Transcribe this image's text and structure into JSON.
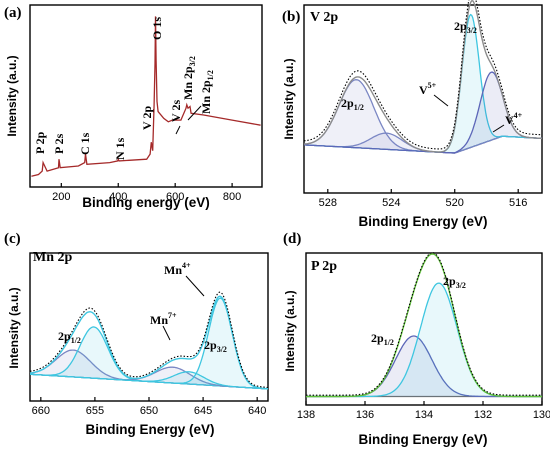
{
  "chart_data": [
    {
      "panel_label": "(a)",
      "type": "line",
      "xlabel": "Binding energy (eV)",
      "ylabel": "Intensity (a.u.)",
      "xlim": [
        90,
        905
      ],
      "x_ticks": [
        200,
        400,
        600,
        800
      ],
      "tick_labels": [
        "200",
        "400",
        "600",
        "800"
      ],
      "series": [
        {
          "color": "#a52a2a",
          "x": [
            95,
            120,
            133,
            136,
            150,
            190,
            192,
            196,
            260,
            282,
            285,
            290,
            370,
            398,
            400,
            403,
            500,
            512,
            516,
            521,
            526,
            529,
            531,
            533,
            536,
            540,
            560,
            576,
            590,
            620,
            638,
            641,
            645,
            652,
            656,
            700,
            800,
            900
          ],
          "y": [
            0.04,
            0.05,
            0.07,
            0.12,
            0.07,
            0.09,
            0.14,
            0.09,
            0.1,
            0.12,
            0.17,
            0.11,
            0.12,
            0.13,
            0.14,
            0.13,
            0.14,
            0.17,
            0.24,
            0.19,
            0.46,
            0.7,
            0.98,
            0.72,
            0.48,
            0.42,
            0.38,
            0.36,
            0.37,
            0.37,
            0.44,
            0.46,
            0.44,
            0.45,
            0.41,
            0.4,
            0.37,
            0.34
          ]
        }
      ],
      "annotations": [
        "P 2p",
        "P 2s",
        "C 1s",
        "N 1s",
        "V 2p",
        "O 1s",
        "V 2s",
        "Mn 2p3/2",
        "Mn 2p1/2"
      ]
    },
    {
      "panel_label": "(b)",
      "element": "V 2p",
      "type": "line",
      "xlabel": "Binding Energy (eV)",
      "ylabel": "Intensity (a.u.)",
      "xlim": [
        529.5,
        514.5
      ],
      "x_ticks": [
        528,
        524,
        520,
        516
      ],
      "tick_labels": [
        "528",
        "524",
        "520",
        "516"
      ],
      "peaks": [
        {
          "center": 526.2,
          "height": 0.42,
          "width": 1.1,
          "color": "#7b87c4"
        },
        {
          "center": 524.3,
          "height": 0.1,
          "width": 1.0,
          "color": "#7b87c4"
        },
        {
          "center": 519.0,
          "height": 0.82,
          "width": 0.55,
          "color": "#3ec6e0"
        },
        {
          "center": 517.7,
          "height": 0.42,
          "width": 0.7,
          "color": "#5c66b8"
        }
      ],
      "annotations": [
        "2p1/2",
        "V5+",
        "2p3/2",
        "V4+"
      ]
    },
    {
      "panel_label": "(c)",
      "element": "Mn 2p",
      "type": "line",
      "xlabel": "Binding Energy (eV)",
      "ylabel": "Intensity (a.u.)",
      "xlim": [
        661,
        639
      ],
      "x_ticks": [
        660,
        655,
        650,
        645,
        640
      ],
      "tick_labels": [
        "660",
        "655",
        "650",
        "645",
        "640"
      ],
      "peaks": [
        {
          "center": 657.0,
          "height": 0.22,
          "width": 1.6,
          "color": "#7b87c4"
        },
        {
          "center": 655.1,
          "height": 0.42,
          "width": 1.3,
          "color": "#3ec6e0"
        },
        {
          "center": 647.8,
          "height": 0.13,
          "width": 1.6,
          "color": "#7b87c4"
        },
        {
          "center": 646.3,
          "height": 0.1,
          "width": 1.4,
          "color": "#3ec6e0"
        },
        {
          "center": 643.4,
          "height": 0.72,
          "width": 1.1,
          "color": "#3ec6e0"
        }
      ],
      "annotations": [
        "Mn4+",
        "Mn7+",
        "2p1/2",
        "2p3/2"
      ]
    },
    {
      "panel_label": "(d)",
      "element": "P 2p",
      "type": "line",
      "xlabel": "Binding Energy (eV)",
      "ylabel": "Intensity (a.u.)",
      "xlim": [
        138,
        130
      ],
      "x_ticks": [
        138,
        136,
        134,
        132,
        130
      ],
      "tick_labels": [
        "138",
        "136",
        "134",
        "132",
        "130"
      ],
      "peaks": [
        {
          "center": 134.35,
          "height": 0.48,
          "width": 0.62,
          "color": "#5c66b8"
        },
        {
          "center": 133.5,
          "height": 0.9,
          "width": 0.62,
          "color": "#3ec6e0"
        }
      ],
      "annotations": [
        "2p1/2",
        "2p3/2"
      ]
    }
  ]
}
